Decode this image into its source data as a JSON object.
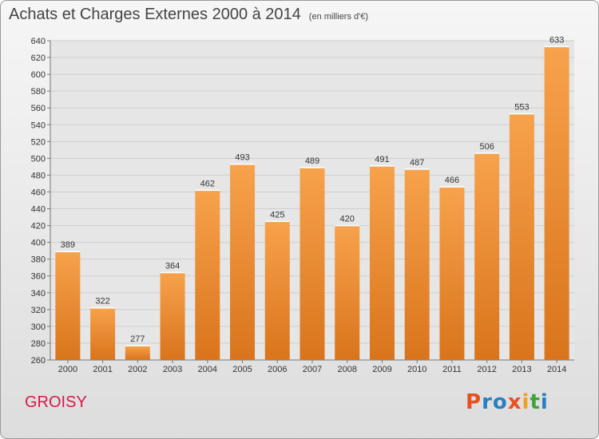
{
  "chart_data": {
    "type": "bar",
    "title": "Achats et Charges Externes 2000 à 2014",
    "subtitle": "(en milliers d'€)",
    "categories": [
      "2000",
      "2001",
      "2002",
      "2003",
      "2004",
      "2005",
      "2006",
      "2007",
      "2008",
      "2009",
      "2010",
      "2011",
      "2012",
      "2013",
      "2014"
    ],
    "values": [
      389,
      322,
      277,
      364,
      462,
      493,
      425,
      489,
      420,
      491,
      487,
      466,
      506,
      553,
      633
    ],
    "ylim": [
      260,
      640
    ],
    "yticks": [
      260,
      280,
      300,
      320,
      340,
      360,
      380,
      400,
      420,
      440,
      460,
      480,
      500,
      520,
      540,
      560,
      580,
      600,
      620,
      640
    ],
    "grid": true,
    "xlabel": "",
    "ylabel": ""
  },
  "footer": {
    "commune": "GROISY",
    "logo_text": "Proxiti"
  },
  "colors": {
    "bar_light": "#f7a24c",
    "bar_dark": "#d9741c",
    "commune": "#d9184a",
    "logo_letters": [
      "#e8501e",
      "#2a7ec1",
      "#2a7ec1",
      "#e8501e",
      "#f0a11c",
      "#3aa63a",
      "#2a7ec1"
    ]
  }
}
